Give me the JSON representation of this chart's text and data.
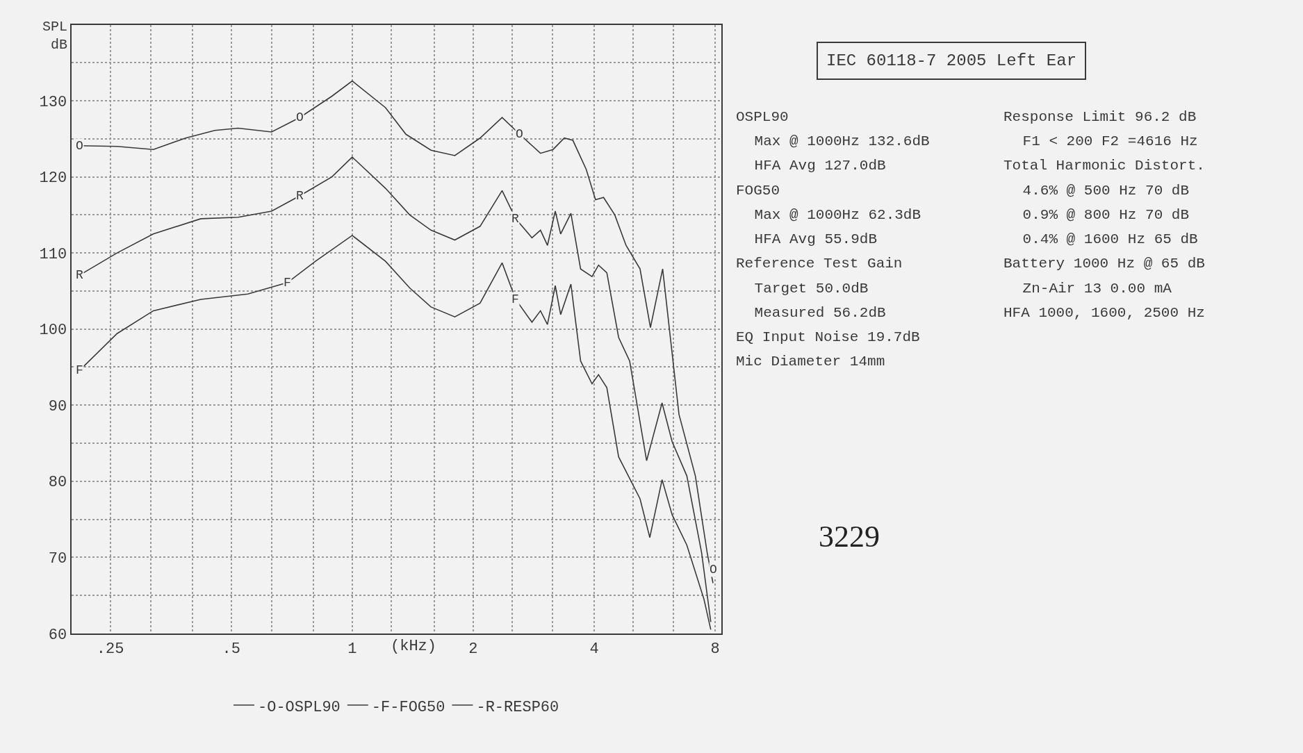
{
  "chart_data": [
    {
      "type": "line",
      "xlabel": "(kHz)",
      "ylabel": "SPL dB",
      "log": "x",
      "grid": true,
      "legend": "bottom",
      "marker": "none",
      "line_style": "solid",
      "xlim": [
        0.2,
        8.3
      ],
      "ylim": [
        60,
        140
      ],
      "xticks": [
        {
          "value": 0.25,
          "label": ".25"
        },
        {
          "value": 0.315,
          "label": null
        },
        {
          "value": 0.4,
          "label": null
        },
        {
          "value": 0.5,
          "label": ".5"
        },
        {
          "value": 0.63,
          "label": null
        },
        {
          "value": 0.8,
          "label": null
        },
        1,
        {
          "value": 1.25,
          "label": null
        },
        {
          "value": 1.6,
          "label": null
        },
        2,
        {
          "value": 2.5,
          "label": null
        },
        {
          "value": 3.15,
          "label": null
        },
        4,
        {
          "value": 5,
          "label": null
        },
        {
          "value": 6.3,
          "label": null
        },
        8
      ],
      "yticks": [
        60,
        {
          "value": 65,
          "label": null
        },
        70,
        {
          "value": 75,
          "label": null
        },
        80,
        {
          "value": 85,
          "label": null
        },
        90,
        {
          "value": 95,
          "label": null
        },
        100,
        {
          "value": 105,
          "label": null
        },
        110,
        {
          "value": 115,
          "label": null
        },
        120,
        {
          "value": 125,
          "label": null
        },
        130,
        {
          "value": 135,
          "label": null
        }
      ],
      "series": [
        {
          "name": "-O-OSPL90",
          "color": "#3a3a3a",
          "x": [
            0.21,
            0.26,
            0.32,
            0.385,
            0.455,
            0.52,
            0.63,
            0.74,
            0.89,
            1.0,
            1.21,
            1.36,
            1.57,
            1.8,
            2.08,
            2.36,
            2.61,
            2.94,
            3.16,
            3.37,
            3.54,
            3.82,
            4.03,
            4.22,
            4.5,
            4.8,
            5.2,
            5.52,
            5.92,
            6.5,
            7.14,
            7.64,
            7.9
          ],
          "values": [
            124.1,
            124,
            123.6,
            125.1,
            126.1,
            126.4,
            125.9,
            127.8,
            130.6,
            132.6,
            129.1,
            125.6,
            123.5,
            122.8,
            125.1,
            127.8,
            125.6,
            123.1,
            123.6,
            125.1,
            124.8,
            121,
            117,
            117.3,
            115,
            111,
            107.9,
            100.2,
            107.9,
            88.8,
            80.7,
            70.6,
            66.6
          ]
        },
        {
          "name": "-F-FOG50",
          "color": "#3a3a3a",
          "x": [
            0.21,
            0.26,
            0.32,
            0.42,
            0.55,
            0.69,
            0.81,
            1.0,
            1.21,
            1.39,
            1.57,
            1.8,
            2.08,
            2.36,
            2.55,
            2.8,
            2.94,
            3.06,
            3.2,
            3.3,
            3.5,
            3.7,
            3.95,
            4.1,
            4.3,
            4.6,
            5.2,
            5.5,
            5.9,
            6.25,
            6.8,
            7.5,
            7.8
          ],
          "values": [
            94.6,
            99.4,
            102.4,
            103.9,
            104.6,
            106.1,
            108.9,
            112.3,
            108.9,
            105.4,
            102.9,
            101.6,
            103.4,
            108.7,
            103.9,
            100.9,
            102.4,
            100.6,
            105.7,
            101.9,
            105.9,
            95.8,
            92.8,
            94,
            92.3,
            83.2,
            77.7,
            72.6,
            80.2,
            75.6,
            71.6,
            64.5,
            60.5
          ]
        },
        {
          "name": "-R-RESP60",
          "color": "#3a3a3a",
          "x": [
            0.21,
            0.26,
            0.32,
            0.42,
            0.52,
            0.63,
            0.74,
            0.89,
            1.0,
            1.21,
            1.39,
            1.57,
            1.8,
            2.08,
            2.36,
            2.55,
            2.8,
            2.94,
            3.06,
            3.2,
            3.3,
            3.5,
            3.7,
            3.95,
            4.1,
            4.3,
            4.6,
            4.9,
            5.4,
            5.9,
            6.25,
            6.8,
            7.4,
            7.8
          ],
          "values": [
            107.1,
            110,
            112.5,
            114.5,
            114.7,
            115.5,
            117.5,
            120,
            122.6,
            118.5,
            115,
            113,
            111.7,
            113.5,
            118.2,
            114.5,
            112,
            113,
            111,
            115.5,
            112.5,
            115.2,
            107.9,
            106.9,
            108.4,
            107.4,
            98.9,
            95.8,
            82.7,
            90.3,
            85.2,
            80.7,
            70.6,
            61.5
          ]
        }
      ],
      "annotations": [
        {
          "text": "O",
          "x": 0.21,
          "y": 124.1
        },
        {
          "text": "O",
          "x": 0.74,
          "y": 127.8
        },
        {
          "text": "O",
          "x": 2.61,
          "y": 125.6
        },
        {
          "text": "O",
          "x": 7.9,
          "y": 68.4
        },
        {
          "text": "R",
          "x": 0.21,
          "y": 107.1
        },
        {
          "text": "R",
          "x": 0.74,
          "y": 117.5
        },
        {
          "text": "R",
          "x": 2.55,
          "y": 114.5
        },
        {
          "text": "F",
          "x": 0.21,
          "y": 94.6
        },
        {
          "text": "F",
          "x": 0.69,
          "y": 106.1
        },
        {
          "text": "F",
          "x": 2.55,
          "y": 103.9
        }
      ]
    },
    {
      "type": "other",
      "title": "IEC 60118-7 2005 Left Ear",
      "annotations": [
        "OSPL90",
        " Max @ 1000Hz 132.6dB",
        " HFA Avg 127.0dB",
        "FOG50",
        " Max @ 1000Hz 62.3dB",
        " HFA Avg 55.9dB",
        "Reference Test Gain",
        " Target 50.0dB",
        " Measured 56.2dB",
        "EQ Input Noise 19.7dB",
        "Mic Diameter 14mm"
      ]
    },
    {
      "type": "other",
      "annotations": [
        "Response Limit 96.2 dB",
        " F1 < 200 F2 =4616 Hz",
        "Total Harmonic Distort.",
        " 4.6% @ 500 Hz 70 dB",
        " 0.9% @ 800 Hz 70 dB",
        " 0.4% @ 1600 Hz 65 dB",
        "Battery 1000 Hz @ 65 dB",
        " Zn-Air 13 0.00 mA",
        "HFA 1000, 1600, 2500 Hz"
      ]
    },
    {
      "type": "other",
      "annotations": [
        "3229"
      ]
    }
  ]
}
